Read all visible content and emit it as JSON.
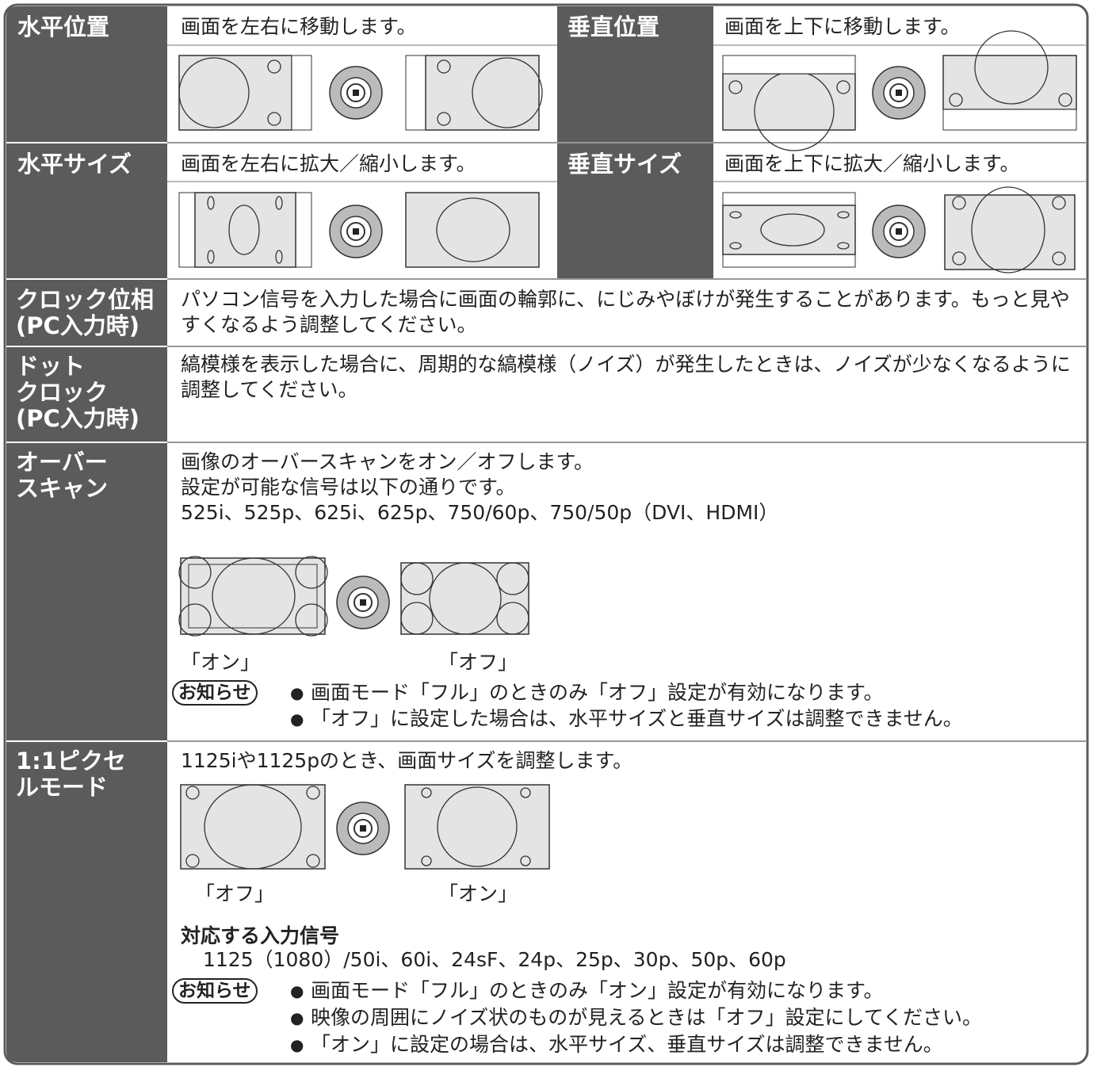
{
  "sections": [
    {
      "label": "水平位置",
      "text": "画面を左右に移動します。"
    },
    {
      "label": "垂直位置",
      "text": "画面を上下に移動します。"
    },
    {
      "label": "水平サイズ",
      "text": "画面を左右に拡大／縮小します。"
    },
    {
      "label": "垂直サイズ",
      "text": "画面を上下に拡大／縮小します。"
    },
    {
      "label_lines": [
        "クロック位相",
        "(PC入力時)"
      ],
      "text": "パソコン信号を入力した場合に画面の輪郭に、にじみやぼけが発生することがあります。もっと見やすくなるよう調整してください。"
    },
    {
      "label_lines": [
        "ドット",
        "クロック",
        "(PC入力時)"
      ],
      "text": "縞模様を表示した場合に、周期的な縞模様（ノイズ）が発生したときは、ノイズが少なくなるように調整してください。"
    },
    {
      "label_lines": [
        "オーバー",
        "スキャン"
      ],
      "lines": [
        "画像のオーバースキャンをオン／オフします。",
        "設定が可能な信号は以下の通りです。",
        "525i、525p、625i、625p、750/60p、750/50p（DVI、HDMI）"
      ],
      "captions": [
        "「オン」",
        "「オフ」"
      ],
      "note_badge": "お知らせ",
      "notes": [
        "画面モード「フル」のときのみ「オフ」設定が有効になります。",
        "「オフ」に設定した場合は、水平サイズと垂直サイズは調整できません。"
      ]
    },
    {
      "label_lines": [
        "1:1ピクセ",
        "ルモード"
      ],
      "text": "1125iや1125pのとき、画面サイズを調整します。",
      "captions": [
        "「オフ」",
        "「オン」"
      ],
      "subheading": "対応する入力信号",
      "signals": "1125（1080）/50i、60i、24sF、24p、25p、30p、50p、60p",
      "note_badge": "お知らせ",
      "notes": [
        "画面モード「フル」のときのみ「オン」設定が有効になります。",
        "映像の周囲にノイズ状のものが見えるときは「オフ」設定にしてください。",
        "「オン」に設定の場合は、水平サイズ、垂直サイズは調整できません。"
      ]
    }
  ]
}
